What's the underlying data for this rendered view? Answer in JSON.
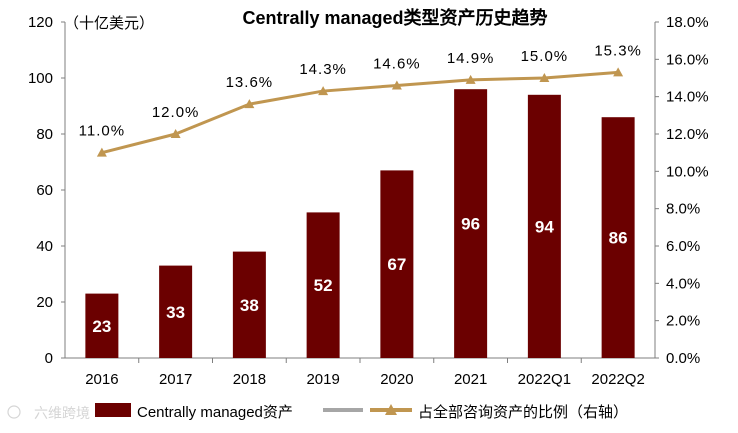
{
  "chart_data": {
    "type": "bar+line",
    "title": "Centrally managed类型资产历史趋势",
    "unit_label": "（十亿美元）",
    "categories": [
      "2016",
      "2017",
      "2018",
      "2019",
      "2020",
      "2021",
      "2022Q1",
      "2022Q2"
    ],
    "left_axis": {
      "min": 0,
      "max": 120,
      "ticks": [
        "0",
        "20",
        "40",
        "60",
        "80",
        "100",
        "120"
      ]
    },
    "right_axis": {
      "min": 0,
      "max": 18,
      "ticks": [
        "0.0%",
        "2.0%",
        "4.0%",
        "6.0%",
        "8.0%",
        "10.0%",
        "12.0%",
        "14.0%",
        "16.0%",
        "18.0%"
      ]
    },
    "series": [
      {
        "name": "Centrally managed资产",
        "type": "bar",
        "axis": "left",
        "color": "#6B0000",
        "values": [
          23,
          33,
          38,
          52,
          67,
          96,
          94,
          86
        ],
        "labels": [
          "23",
          "33",
          "38",
          "52",
          "67",
          "96",
          "94",
          "86"
        ]
      },
      {
        "name": "占全部咨询资产的比例（右轴）",
        "type": "line",
        "axis": "right",
        "color": "#C09650",
        "values": [
          11.0,
          12.0,
          13.6,
          14.3,
          14.6,
          14.9,
          15.0,
          15.3
        ],
        "labels": [
          "11.0%",
          "12.0%",
          "13.6%",
          "14.3%",
          "14.6%",
          "14.9%",
          "15.0%",
          "15.3%"
        ]
      }
    ],
    "legend": {
      "position": "bottom",
      "bar_label": "Centrally managed资产",
      "line_label": "占全部咨询资产的比例（右轴）",
      "line_swatch_color": "#A6A6A6"
    },
    "watermark": "六维跨境"
  }
}
